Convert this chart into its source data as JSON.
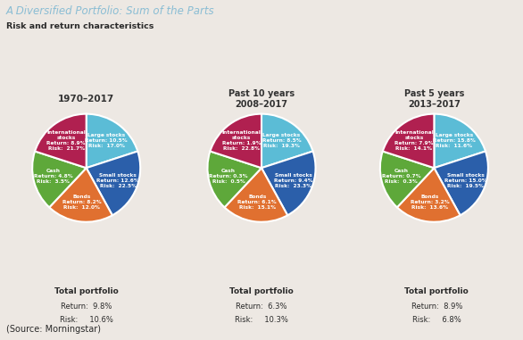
{
  "title": "A Diversified Portfolio: Sum of the Parts",
  "subtitle": "Risk and return characteristics",
  "source": "(Source: Morningstar)",
  "background_color": "#ede8e3",
  "charts": [
    {
      "label": "1970–2017",
      "label2": "",
      "slices": [
        {
          "name": "Large stocks",
          "return": "10.5%",
          "risk": "17.0%",
          "size": 0.2,
          "color": "#5bbcd6"
        },
        {
          "name": "Small stocks",
          "return": "12.6%",
          "risk": "22.5%",
          "size": 0.22,
          "color": "#2b5faa"
        },
        {
          "name": "Bonds",
          "return": "8.2%",
          "risk": "12.0%",
          "size": 0.2,
          "color": "#e07030"
        },
        {
          "name": "Cash",
          "return": "4.8%",
          "risk": "3.5%",
          "size": 0.18,
          "color": "#5ea83a"
        },
        {
          "name": "International\nstocks",
          "return": "8.9%",
          "risk": "21.7%",
          "size": 0.2,
          "color": "#b02050"
        }
      ],
      "total_return": "9.8%",
      "total_risk": "10.6%"
    },
    {
      "label": "Past 10 years",
      "label2": "2008–2017",
      "slices": [
        {
          "name": "Large stocks",
          "return": "8.5%",
          "risk": "19.3%",
          "size": 0.2,
          "color": "#5bbcd6"
        },
        {
          "name": "Small stocks",
          "return": "9.4%",
          "risk": "23.3%",
          "size": 0.22,
          "color": "#2b5faa"
        },
        {
          "name": "Bonds",
          "return": "6.1%",
          "risk": "15.1%",
          "size": 0.2,
          "color": "#e07030"
        },
        {
          "name": "Cash",
          "return": "0.3%",
          "risk": "0.5%",
          "size": 0.18,
          "color": "#5ea83a"
        },
        {
          "name": "International\nstocks",
          "return": "1.9%",
          "risk": "22.8%",
          "size": 0.2,
          "color": "#b02050"
        }
      ],
      "total_return": "6.3%",
      "total_risk": "10.3%"
    },
    {
      "label": "Past 5 years",
      "label2": "2013–2017",
      "slices": [
        {
          "name": "Large stocks",
          "return": "15.8%",
          "risk": "11.6%",
          "size": 0.2,
          "color": "#5bbcd6"
        },
        {
          "name": "Small stocks",
          "return": "15.0%",
          "risk": "19.5%",
          "size": 0.22,
          "color": "#2b5faa"
        },
        {
          "name": "Bonds",
          "return": "3.2%",
          "risk": "13.6%",
          "size": 0.2,
          "color": "#e07030"
        },
        {
          "name": "Cash",
          "return": "0.7%",
          "risk": "0.3%",
          "size": 0.18,
          "color": "#5ea83a"
        },
        {
          "name": "International\nstocks",
          "return": "7.9%",
          "risk": "14.1%",
          "size": 0.2,
          "color": "#b02050"
        }
      ],
      "total_return": "8.9%",
      "total_risk": "6.8%"
    }
  ]
}
